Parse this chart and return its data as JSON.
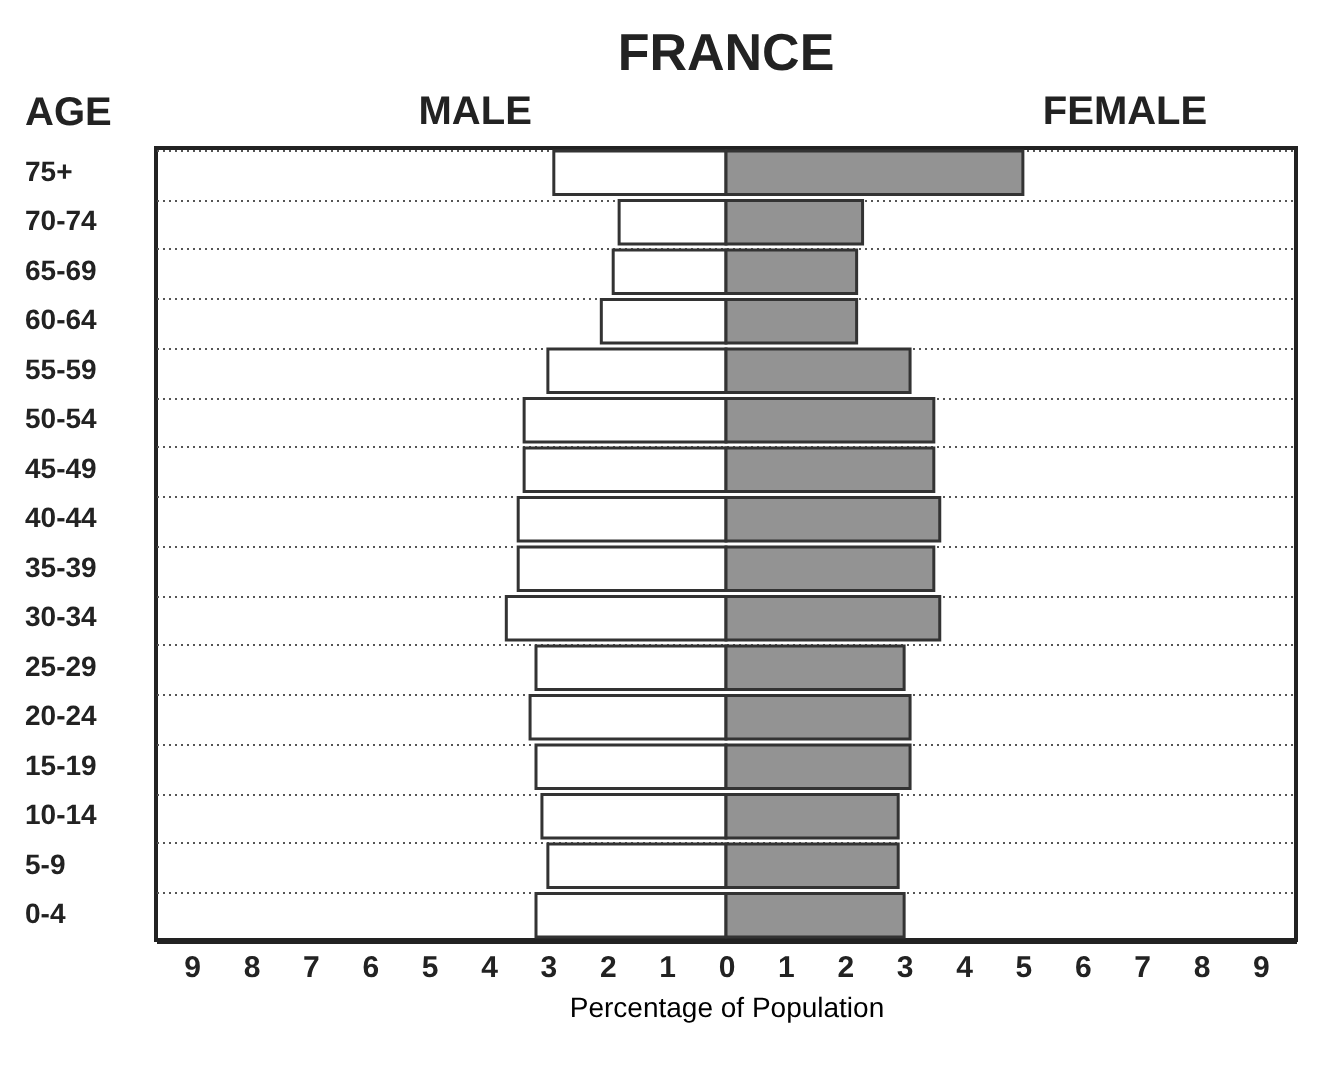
{
  "chart_data": {
    "type": "bar",
    "orientation": "horizontal",
    "stacked": true,
    "title": "FRANCE",
    "ylabel": "AGE",
    "xlabel": "Percentage of Population",
    "categories": [
      "75+",
      "70-74",
      "65-69",
      "60-64",
      "55-59",
      "50-54",
      "45-49",
      "40-44",
      "35-39",
      "30-34",
      "25-29",
      "20-24",
      "15-19",
      "10-14",
      "5-9",
      "0-4"
    ],
    "series": [
      {
        "name": "MALE",
        "color": "#ffffff",
        "values": [
          -2.9,
          -1.8,
          -1.9,
          -2.1,
          -3.0,
          -3.4,
          -3.4,
          -3.5,
          -3.5,
          -3.7,
          -3.2,
          -3.3,
          -3.2,
          -3.1,
          -3.0,
          -3.2
        ]
      },
      {
        "name": "FEMALE",
        "color": "#939393",
        "values": [
          5.0,
          2.3,
          2.2,
          2.2,
          3.1,
          3.5,
          3.5,
          3.6,
          3.5,
          3.6,
          3.0,
          3.1,
          3.1,
          2.9,
          2.9,
          3.0
        ]
      }
    ],
    "xlim": [
      -9.6,
      9.6
    ],
    "xticks": [
      {
        "value": -9,
        "label": "9"
      },
      {
        "value": -8,
        "label": "8"
      },
      {
        "value": -7,
        "label": "7"
      },
      {
        "value": -6,
        "label": "6"
      },
      {
        "value": -5,
        "label": "5"
      },
      {
        "value": -4,
        "label": "4"
      },
      {
        "value": -3,
        "label": "3"
      },
      {
        "value": -2,
        "label": "2"
      },
      {
        "value": -1,
        "label": "1"
      },
      0,
      1,
      2,
      3,
      4,
      5,
      6,
      7,
      8,
      9
    ],
    "grid": "y",
    "legend": "top"
  }
}
